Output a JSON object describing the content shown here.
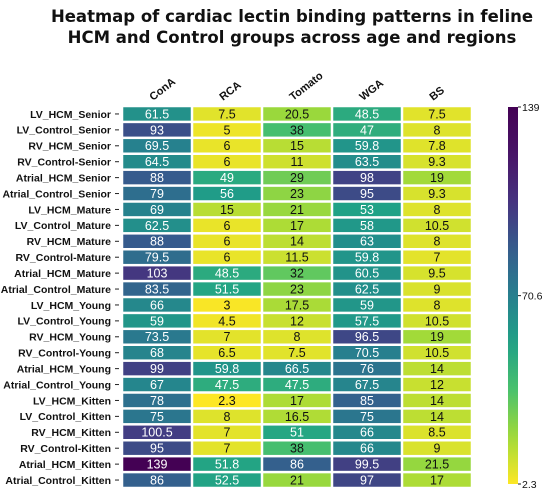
{
  "chart_data": {
    "type": "heatmap",
    "title": "Heatmap of cardiac lectin binding patterns in feline HCM and Control groups across age and regions",
    "title_lines": [
      "Heatmap of cardiac lectin binding patterns in feline",
      "HCM and Control groups across age and regions"
    ],
    "columns": [
      "ConA",
      "RCA",
      "Tomato",
      "WGA",
      "BS"
    ],
    "rows": [
      "LV_HCM_Senior",
      "LV_Control_Senior",
      "RV_HCM_Senior",
      "RV_Control-Senior",
      "Atrial_HCM_Senior",
      "Atrial_Control_Senior",
      "LV_HCM_Mature",
      "LV_Control_Mature",
      "RV_HCM_Mature",
      "RV_Control-Mature",
      "Atrial_HCM_Mature",
      "Atrial_Control_Mature",
      "LV_HCM_Young",
      "LV_Control_Young",
      "RV_HCM_Young",
      "RV_Control-Young",
      "Atrial_HCM_Young",
      "Atrial_Control_Young",
      "LV_HCM_Kitten",
      "LV_Control_Kitten",
      "RV_HCM_Kitten",
      "RV_Control-Kitten",
      "Atrial_HCM_Kitten",
      "Atrial_Control_Kitten"
    ],
    "values": [
      [
        61.5,
        7.5,
        20.5,
        48.5,
        7.5
      ],
      [
        93,
        5,
        38,
        47,
        8
      ],
      [
        69.5,
        6,
        15,
        59.8,
        7.8
      ],
      [
        64.5,
        6,
        11,
        63.5,
        9.3
      ],
      [
        88,
        49,
        29,
        98,
        19
      ],
      [
        79,
        56,
        23,
        95,
        9.3
      ],
      [
        69,
        15,
        21,
        53,
        8
      ],
      [
        62.5,
        6,
        17,
        58,
        10.5
      ],
      [
        88,
        6,
        14,
        63,
        8
      ],
      [
        79.5,
        6,
        11.5,
        59.8,
        7
      ],
      [
        103,
        48.5,
        32,
        60.5,
        9.5
      ],
      [
        83.5,
        51.5,
        23,
        62.5,
        9
      ],
      [
        66,
        3,
        17.5,
        59,
        8
      ],
      [
        59,
        4.5,
        12,
        57.5,
        10.5
      ],
      [
        73.5,
        7,
        8,
        96.5,
        19
      ],
      [
        68,
        6.5,
        7.5,
        70.5,
        10.5
      ],
      [
        99,
        59.8,
        66.5,
        76,
        14
      ],
      [
        67,
        47.5,
        47.5,
        67.5,
        12
      ],
      [
        78,
        2.3,
        17,
        85,
        14
      ],
      [
        75,
        8,
        16.5,
        75,
        14
      ],
      [
        100.5,
        7,
        51,
        66,
        8.5
      ],
      [
        95,
        7,
        38,
        66,
        9
      ],
      [
        139,
        51.8,
        86,
        99.5,
        21.5
      ],
      [
        86,
        52.5,
        21,
        97,
        17
      ]
    ],
    "colorscale": "viridis-reversed",
    "color_range": [
      2.3,
      139
    ],
    "colorbar_ticks": [
      {
        "value": 139,
        "label": "139"
      },
      {
        "value": 70.6,
        "label": "70.6"
      },
      {
        "value": 2.3,
        "label": "2.3"
      }
    ],
    "grid": false,
    "legend_position": "right"
  }
}
